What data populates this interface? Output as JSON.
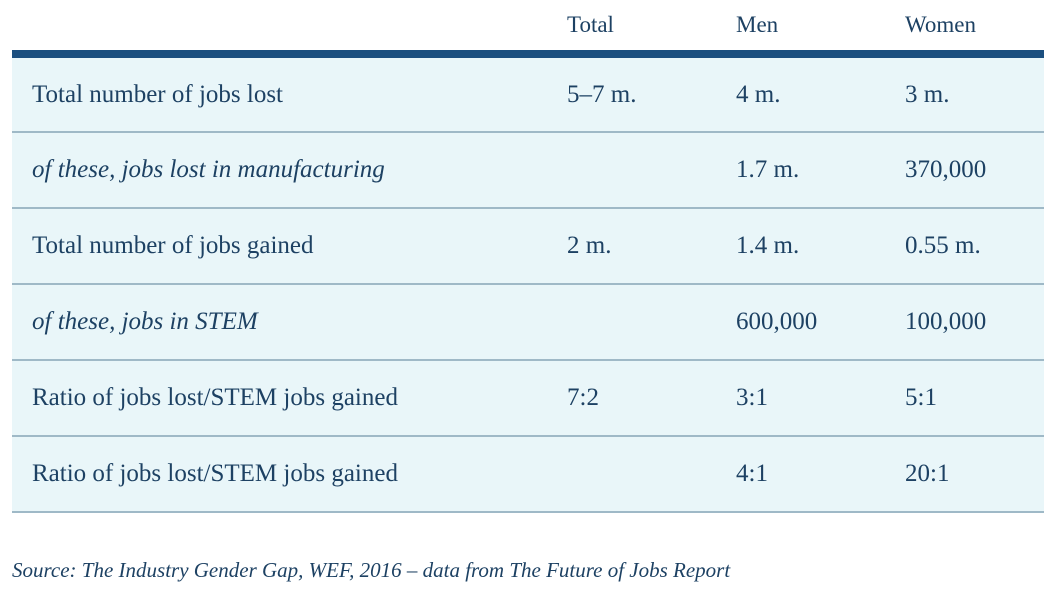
{
  "chart_data": {
    "type": "table",
    "columns": [
      "",
      "Total",
      "Men",
      "Women"
    ],
    "rows": [
      {
        "label": "Total number of jobs lost",
        "italic": false,
        "total": "5–7 m.",
        "men": "4 m.",
        "women": "3 m."
      },
      {
        "label": "of these, jobs lost in manufacturing",
        "italic": true,
        "total": "",
        "men": "1.7 m.",
        "women": "370,000"
      },
      {
        "label": "Total number of jobs gained",
        "italic": false,
        "total": "2 m.",
        "men": "1.4 m.",
        "women": "0.55 m."
      },
      {
        "label": "of these, jobs in STEM",
        "italic": true,
        "total": "",
        "men": "600,000",
        "women": "100,000"
      },
      {
        "label": "Ratio of jobs lost/STEM jobs gained",
        "italic": false,
        "total": "7:2",
        "men": "3:1",
        "women": "5:1"
      },
      {
        "label": "Ratio of jobs lost/STEM jobs gained",
        "italic": false,
        "total": "",
        "men": "4:1",
        "women": "20:1"
      }
    ],
    "source": "Source: The Industry Gender Gap, WEF, 2016 – data from The Future of Jobs Report"
  },
  "colors": {
    "text": "#1d4163",
    "header_rule": "#1b4f7f",
    "row_background": "#e9f6f9",
    "row_divider": "#9fb9c7"
  }
}
